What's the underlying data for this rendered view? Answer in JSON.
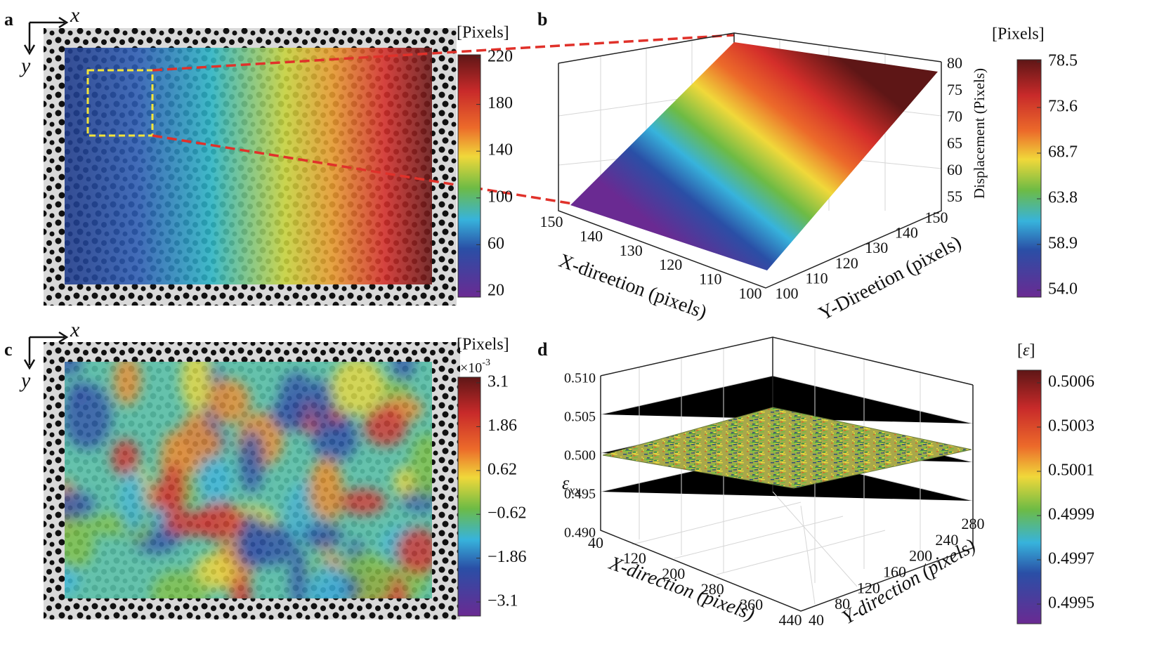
{
  "panels": {
    "a": {
      "label": "a",
      "axis_x": "x",
      "axis_y": "y",
      "colorbar": {
        "unit": "[Pixels]",
        "ticks": [
          "220",
          "180",
          "140",
          "100",
          "60",
          "20"
        ]
      }
    },
    "b": {
      "label": "b",
      "z_label": "Displacement (Pixels)",
      "x_label": "X-direetion (pixels)",
      "y_label": "Y-Direetion (pixels)",
      "z_ticks": [
        "80",
        "75",
        "70",
        "65",
        "60",
        "55"
      ],
      "x_ticks": [
        "150",
        "140",
        "130",
        "120",
        "110",
        "100"
      ],
      "y_ticks": [
        "100",
        "110",
        "120",
        "130",
        "140",
        "150"
      ],
      "colorbar": {
        "unit": "[Pixels]",
        "ticks": [
          "78.5",
          "73.6",
          "68.7",
          "63.8",
          "58.9",
          "54.0"
        ]
      }
    },
    "c": {
      "label": "c",
      "axis_x": "x",
      "axis_y": "y",
      "colorbar": {
        "unit": "[Pixels]",
        "multiplier": "×10",
        "exponent": "-3",
        "ticks": [
          "3.1",
          "1.86",
          "0.62",
          "−0.62",
          "−1.86",
          "−3.1"
        ]
      }
    },
    "d": {
      "label": "d",
      "z_symbol": "ε",
      "z_subscript": "xx",
      "x_label": "X-direction (pixels)",
      "y_label": "Y-direction (pixels)",
      "z_ticks": [
        "0.510",
        "0.505",
        "0.500",
        "0.495",
        "0.490"
      ],
      "x_ticks": [
        "40",
        "120",
        "200",
        "280",
        "360",
        "440"
      ],
      "y_ticks": [
        "40",
        "80",
        "120",
        "160",
        "200",
        "240",
        "280"
      ],
      "colorbar": {
        "unit_open": "[",
        "unit_symbol": "ε",
        "unit_close": "]",
        "ticks": [
          "0.5006",
          "0.5003",
          "0.5001",
          "0.4999",
          "0.4997",
          "0.4995"
        ]
      }
    }
  }
}
